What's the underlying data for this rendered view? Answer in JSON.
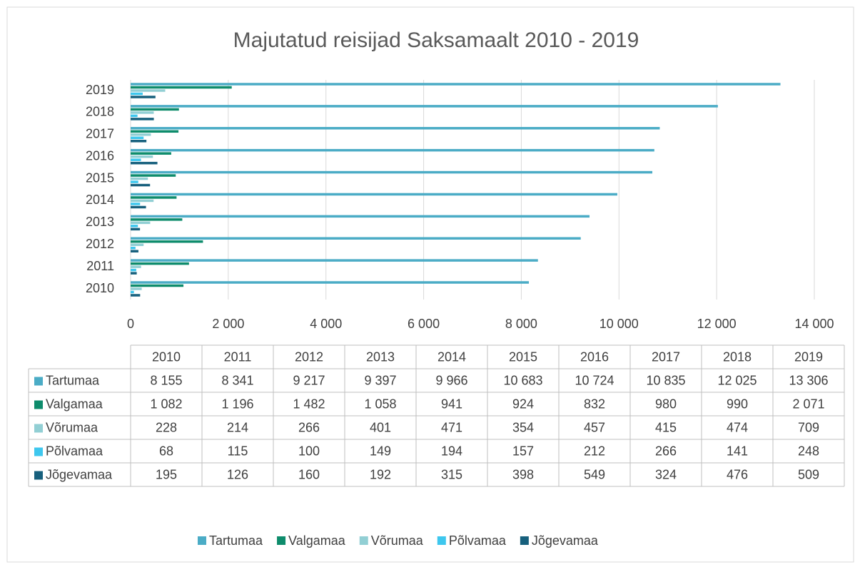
{
  "chart_data": {
    "type": "bar",
    "orientation": "horizontal",
    "title": "Majutatud reisijad Saksamaalt 2010 - 2019",
    "categories": [
      "2010",
      "2011",
      "2012",
      "2013",
      "2014",
      "2015",
      "2016",
      "2017",
      "2018",
      "2019"
    ],
    "series": [
      {
        "name": "Tartumaa",
        "color": "#4bacc6",
        "values": [
          8155,
          8341,
          9217,
          9397,
          9966,
          10683,
          10724,
          10835,
          12025,
          13306
        ],
        "value_labels": [
          "8 155",
          "8 341",
          "9 217",
          "9 397",
          "9 966",
          "10 683",
          "10 724",
          "10 835",
          "12 025",
          "13 306"
        ]
      },
      {
        "name": "Valgamaa",
        "color": "#0e8c6c",
        "values": [
          1082,
          1196,
          1482,
          1058,
          941,
          924,
          832,
          980,
          990,
          2071
        ],
        "value_labels": [
          "1 082",
          "1 196",
          "1 482",
          "1 058",
          "941",
          "924",
          "832",
          "980",
          "990",
          "2 071"
        ]
      },
      {
        "name": "Võrumaa",
        "color": "#92cfd4",
        "values": [
          228,
          214,
          266,
          401,
          471,
          354,
          457,
          415,
          474,
          709
        ],
        "value_labels": [
          "228",
          "214",
          "266",
          "401",
          "471",
          "354",
          "457",
          "415",
          "474",
          "709"
        ]
      },
      {
        "name": "Põlvamaa",
        "color": "#3ec7ee",
        "values": [
          68,
          115,
          100,
          149,
          194,
          157,
          212,
          266,
          141,
          248
        ],
        "value_labels": [
          "68",
          "115",
          "100",
          "149",
          "194",
          "157",
          "212",
          "266",
          "141",
          "248"
        ]
      },
      {
        "name": "Jõgevamaa",
        "color": "#17607d",
        "values": [
          195,
          126,
          160,
          192,
          315,
          398,
          549,
          324,
          476,
          509
        ],
        "value_labels": [
          "195",
          "126",
          "160",
          "192",
          "315",
          "398",
          "549",
          "324",
          "476",
          "509"
        ]
      }
    ],
    "xlim": [
      0,
      14000
    ],
    "xticks": [
      0,
      {
        "value": 2000,
        "label": "2 000"
      },
      {
        "value": 4000,
        "label": "4 000"
      },
      {
        "value": 6000,
        "label": "6 000"
      },
      {
        "value": 8000,
        "label": "8 000"
      },
      {
        "value": 10000,
        "label": "10 000"
      },
      {
        "value": 12000,
        "label": "12 000"
      },
      {
        "value": 14000,
        "label": "14 000"
      }
    ],
    "grid": true,
    "legend": "bottom"
  }
}
